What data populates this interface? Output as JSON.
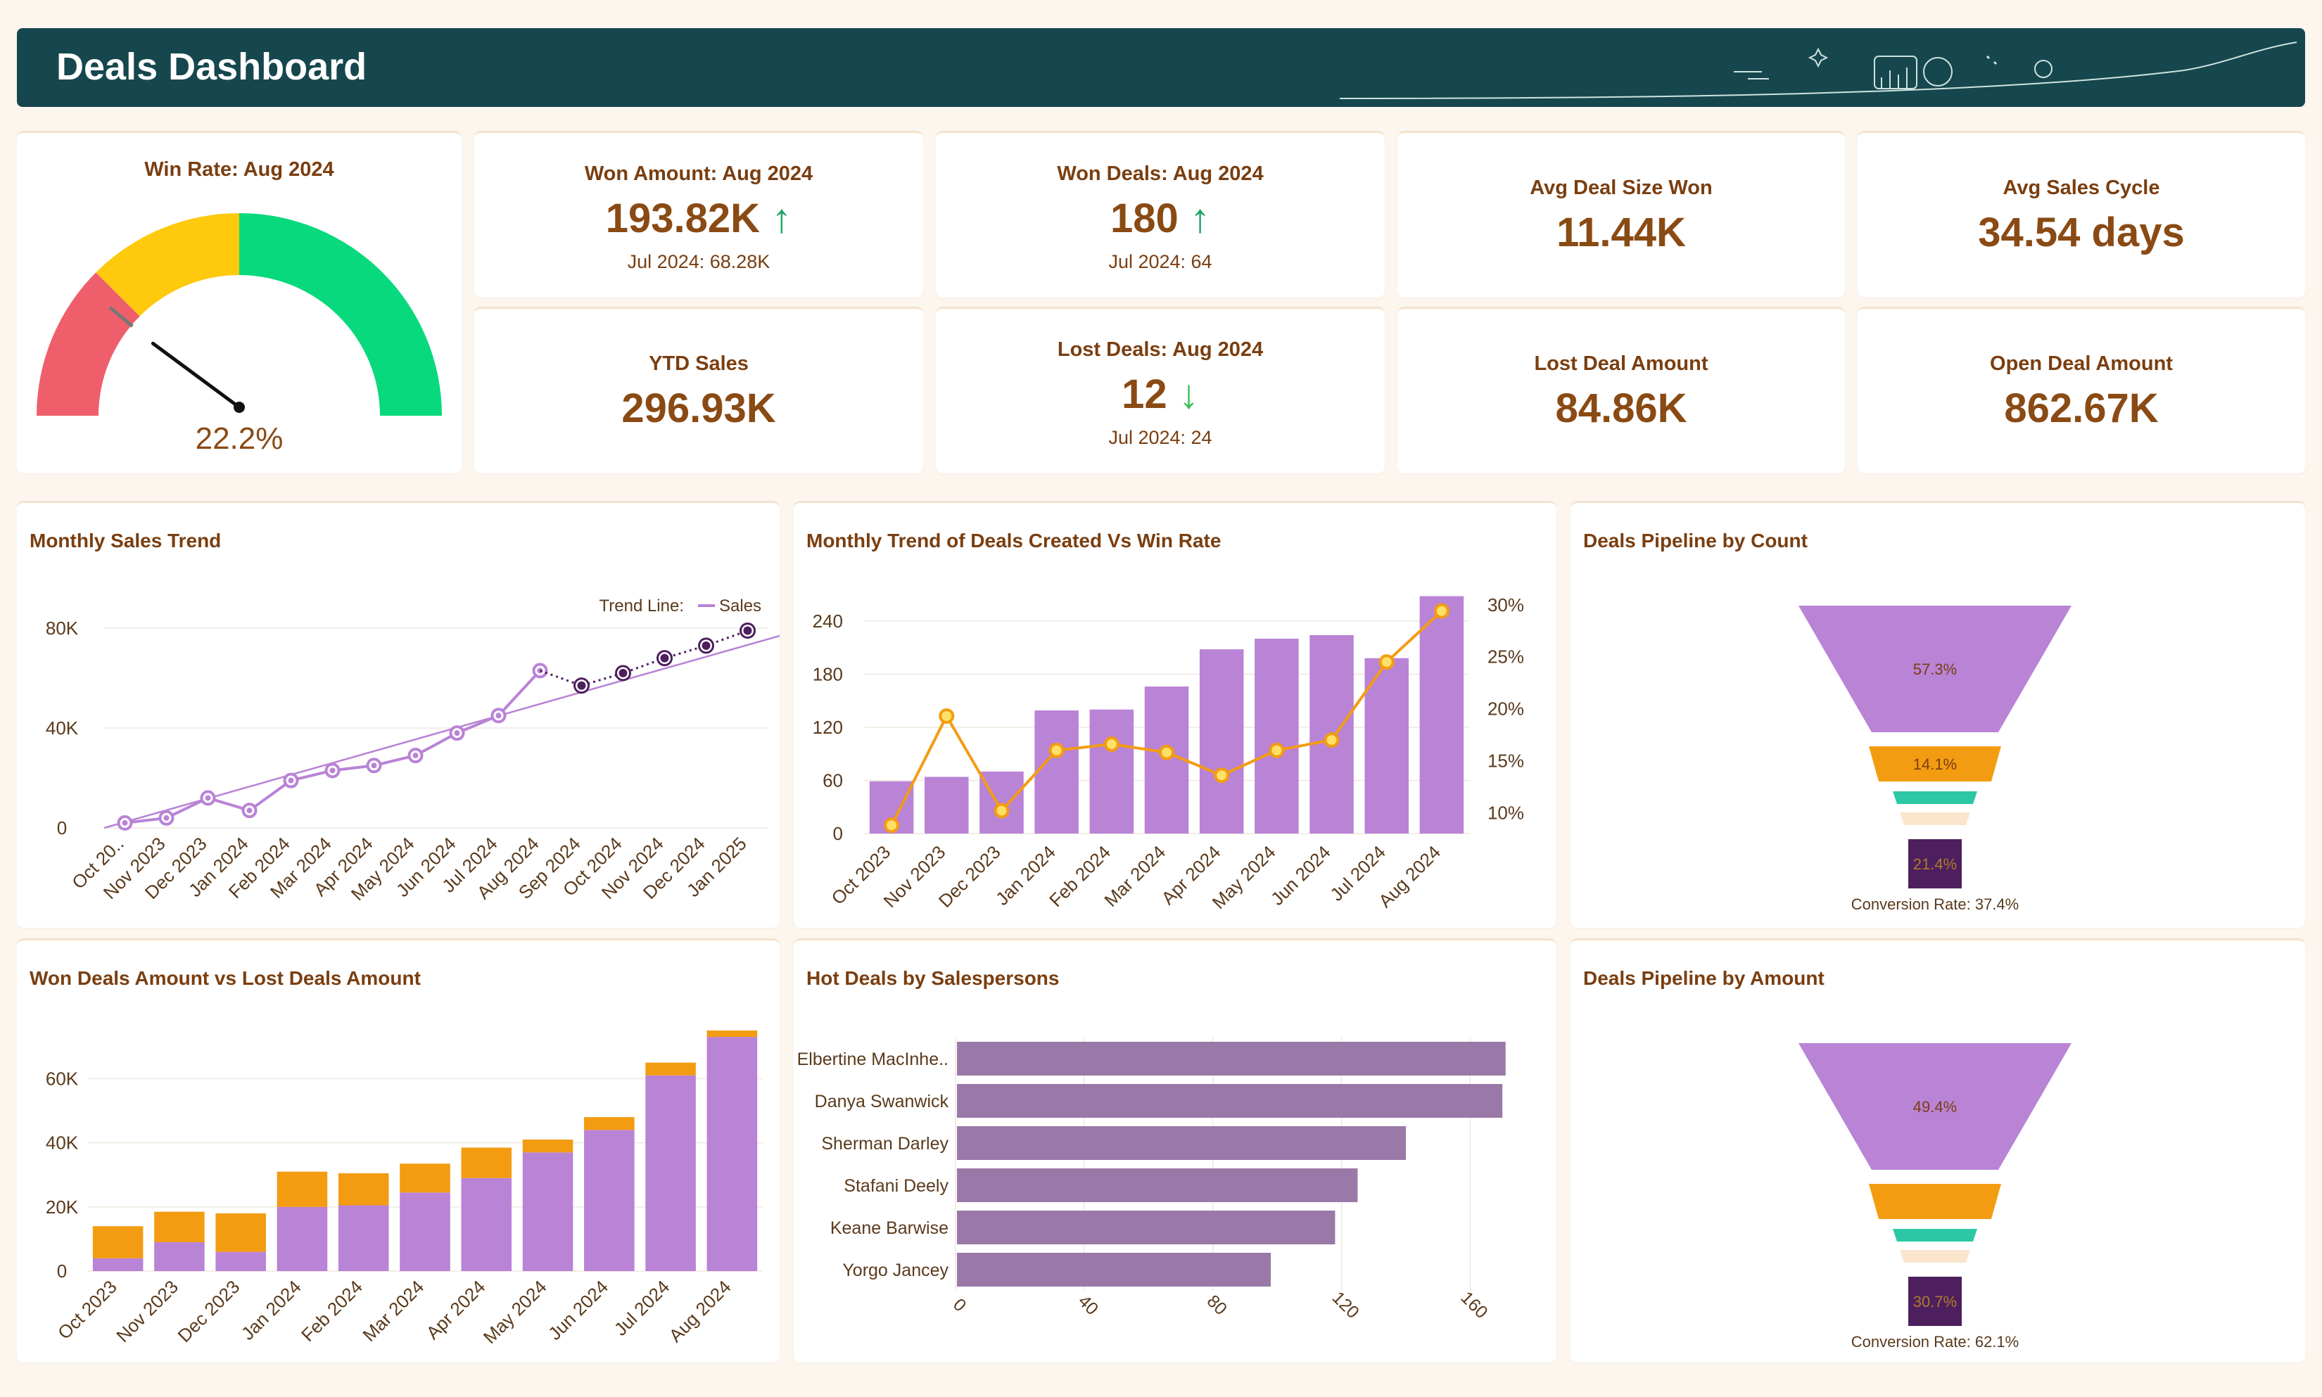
{
  "header": {
    "title": "Deals Dashboard"
  },
  "colors": {
    "purple": "#b983d6",
    "purple_dark": "#4d1f5e",
    "orange": "#f39c12",
    "gauge_red": "#ef5f6b",
    "gauge_yellow": "#ffc90e",
    "gauge_green": "#08d97d",
    "header_bg": "#16474e",
    "funnel_teal": "#2cc7a5",
    "funnel_cream": "#fbe6cd",
    "bar_mauve": "#9a78a8"
  },
  "gauge": {
    "title": "Win Rate: Aug 2024",
    "value_label": "22.2%",
    "value": 22.2
  },
  "kpis": {
    "won_amount": {
      "title": "Won Amount: Aug 2024",
      "value": "193.82K",
      "arrow": "↑",
      "sub": "Jul 2024: 68.28K"
    },
    "won_deals": {
      "title": "Won Deals: Aug 2024",
      "value": "180",
      "arrow": "↑",
      "sub": "Jul 2024: 64"
    },
    "avg_deal": {
      "title": "Avg Deal Size Won",
      "value": "11.44K"
    },
    "avg_cycle": {
      "title": "Avg Sales Cycle",
      "value": "34.54 days"
    },
    "ytd_sales": {
      "title": "YTD Sales",
      "value": "296.93K"
    },
    "lost_deals": {
      "title": "Lost Deals: Aug 2024",
      "value": "12",
      "arrow": "↓",
      "sub": "Jul 2024: 24"
    },
    "lost_amount": {
      "title": "Lost Deal Amount",
      "value": "84.86K"
    },
    "open_amount": {
      "title": "Open Deal Amount",
      "value": "862.67K"
    }
  },
  "chart_data": [
    {
      "id": "monthly_sales",
      "type": "line",
      "title": "Monthly Sales Trend",
      "legend_label": "Trend Line:",
      "legend_series": "Sales",
      "categories": [
        "Oct 20..",
        "Nov 2023",
        "Dec 2023",
        "Jan 2024",
        "Feb 2024",
        "Mar 2024",
        "Apr 2024",
        "May 2024",
        "Jun 2024",
        "Jul 2024",
        "Aug 2024",
        "Sep 2024",
        "Oct 2024",
        "Nov 2024",
        "Dec 2024",
        "Jan 2025"
      ],
      "y_ticks": [
        "0",
        "40K",
        "80K"
      ],
      "ylim": [
        0,
        80000
      ],
      "actual": [
        2000,
        4000,
        12000,
        7000,
        19000,
        23000,
        25000,
        29000,
        38000,
        45000,
        63000
      ],
      "forecast": [
        null,
        null,
        null,
        null,
        null,
        null,
        null,
        null,
        null,
        null,
        63000,
        57000,
        62000,
        68000,
        73000,
        79000
      ],
      "trend": [
        [
          -0.5,
          0
        ],
        [
          16,
          78000
        ]
      ]
    },
    {
      "id": "deals_vs_winrate",
      "type": "bar",
      "title": "Monthly Trend of Deals Created Vs Win Rate",
      "categories": [
        "Oct 2023",
        "Nov 2023",
        "Dec 2023",
        "Jan 2024",
        "Feb 2024",
        "Mar 2024",
        "Apr 2024",
        "May 2024",
        "Jun 2024",
        "Jul 2024",
        "Aug 2024"
      ],
      "y_ticks": [
        "0",
        "60",
        "120",
        "180",
        "240"
      ],
      "y2_ticks": [
        "10%",
        "15%",
        "20%",
        "25%",
        "30%"
      ],
      "ylim": [
        0,
        270
      ],
      "y2lim": [
        8,
        31
      ],
      "deals_created": [
        59,
        64,
        70,
        139,
        140,
        166,
        208,
        220,
        224,
        198,
        268
      ],
      "win_rate": [
        8.8,
        19.3,
        10.2,
        16.0,
        16.6,
        15.8,
        13.6,
        16.0,
        17.0,
        24.5,
        29.4
      ]
    },
    {
      "id": "pipeline_count",
      "type": "funnel",
      "title": "Deals Pipeline by Count",
      "stages": [
        {
          "label": "57.3%",
          "value": 100,
          "color": "#b983d6"
        },
        {
          "label": "14.1%",
          "value": 50,
          "color": "#f39c12"
        },
        {
          "label": "",
          "value": 33,
          "color": "#2cc7a5"
        },
        {
          "label": "",
          "value": 24,
          "color": "#fbe6cd"
        },
        {
          "label": "21.4%",
          "value": 20,
          "color": "#4d1f5e"
        }
      ],
      "footer": "Conversion Rate: 37.4%"
    },
    {
      "id": "won_vs_lost",
      "type": "bar",
      "title": "Won Deals Amount vs Lost Deals Amount",
      "categories": [
        "Oct 2023",
        "Nov 2023",
        "Dec 2023",
        "Jan 2024",
        "Feb 2024",
        "Mar 2024",
        "Apr 2024",
        "May 2024",
        "Jun 2024",
        "Jul 2024",
        "Aug 2024"
      ],
      "y_ticks": [
        "0",
        "20K",
        "40K",
        "60K"
      ],
      "ylim": [
        0,
        75000
      ],
      "series": [
        {
          "name": "Won",
          "values": [
            4000,
            9000,
            6000,
            20000,
            20500,
            24500,
            29000,
            37000,
            44000,
            61000,
            73000
          ]
        },
        {
          "name": "Lost",
          "values": [
            10000,
            9500,
            12000,
            11000,
            10000,
            9000,
            9500,
            4000,
            4000,
            4000,
            2000
          ]
        }
      ]
    },
    {
      "id": "hot_deals",
      "type": "bar",
      "title": "Hot Deals by Salespersons",
      "categories": [
        "Elbertine MacInhe..",
        "Danya Swanwick",
        "Sherman Darley",
        "Stafani Deely",
        "Keane Barwise",
        "Yorgo Jancey"
      ],
      "values": [
        171,
        170,
        140,
        125,
        118,
        98
      ],
      "x_ticks": [
        "0",
        "40",
        "80",
        "120",
        "160"
      ],
      "xlim": [
        0,
        175
      ]
    },
    {
      "id": "pipeline_amount",
      "type": "funnel",
      "title": "Deals Pipeline by Amount",
      "stages": [
        {
          "label": "49.4%",
          "value": 100,
          "color": "#b983d6"
        },
        {
          "label": "",
          "value": 56,
          "color": "#f39c12"
        },
        {
          "label": "",
          "value": 46,
          "color": "#2cc7a5"
        },
        {
          "label": "",
          "value": 38,
          "color": "#fbe6cd"
        },
        {
          "label": "30.7%",
          "value": 30,
          "color": "#4d1f5e"
        }
      ],
      "footer": "Conversion Rate: 62.1%"
    }
  ]
}
